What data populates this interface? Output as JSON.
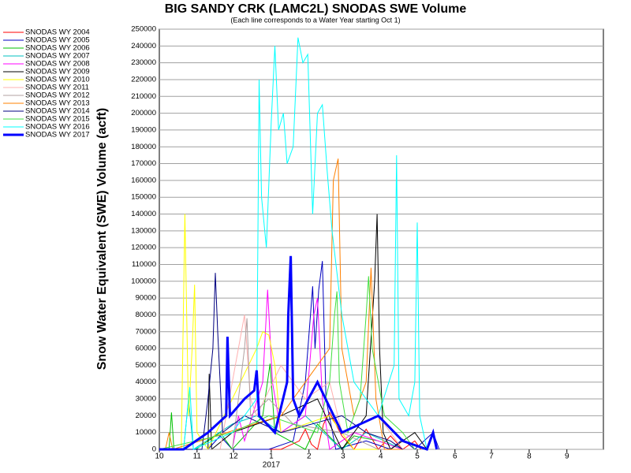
{
  "chart_data": {
    "type": "line",
    "title": "BIG SANDY CRK (LAMC2L) SNODAS SWE Volume",
    "subtitle": "(Each line corresponds to a Water Year starting Oct 1)",
    "y_label": "Snow Water Equivalent (SWE) Volume (acft)",
    "year_label": "2017",
    "xlim": [
      0,
      365
    ],
    "xticks": [
      {
        "value": 0,
        "label": "10"
      },
      {
        "value": 31,
        "label": "11"
      },
      {
        "value": 61,
        "label": "12"
      },
      {
        "value": 92,
        "label": "1"
      },
      {
        "value": 123,
        "label": "2"
      },
      {
        "value": 151,
        "label": "3"
      },
      {
        "value": 182,
        "label": "4"
      },
      {
        "value": 212,
        "label": "5"
      },
      {
        "value": 243,
        "label": "6"
      },
      {
        "value": 273,
        "label": "7"
      },
      {
        "value": 304,
        "label": "8"
      },
      {
        "value": 335,
        "label": "9"
      }
    ],
    "ylim": [
      0,
      250000
    ],
    "yticks": [
      0,
      10000,
      20000,
      30000,
      40000,
      50000,
      60000,
      70000,
      80000,
      90000,
      100000,
      110000,
      120000,
      130000,
      140000,
      150000,
      160000,
      170000,
      180000,
      190000,
      200000,
      210000,
      220000,
      230000,
      240000,
      250000
    ],
    "grid": true,
    "legend": "top-left",
    "series": [
      {
        "name": "SNODAS WY 2004",
        "color": "#ff0000",
        "x": [
          0,
          100,
          115,
          120,
          125,
          130,
          135,
          140,
          150,
          160,
          170,
          180,
          190,
          200,
          210,
          215
        ],
        "values": [
          0,
          0,
          5000,
          12000,
          3000,
          0,
          15000,
          22000,
          8000,
          0,
          12000,
          0,
          8000,
          0,
          5000,
          0
        ]
      },
      {
        "name": "SNODAS WY 2005",
        "color": "#0000c0",
        "x": [
          0,
          40,
          50,
          60,
          90,
          110,
          120,
          126,
          128,
          131,
          134,
          137,
          145,
          170,
          190,
          200,
          210,
          225,
          230
        ],
        "values": [
          0,
          0,
          8000,
          0,
          0,
          5000,
          40000,
          97000,
          60000,
          95000,
          112000,
          30000,
          0,
          5000,
          0,
          6000,
          0,
          10000,
          0
        ]
      },
      {
        "name": "SNODAS WY 2006",
        "color": "#00c000",
        "x": [
          0,
          8,
          10,
          12,
          30,
          50,
          60,
          85,
          91,
          95,
          120,
          130,
          150,
          160,
          180,
          200
        ],
        "values": [
          0,
          0,
          22000,
          0,
          0,
          10000,
          0,
          20000,
          51000,
          10000,
          0,
          15000,
          0,
          8000,
          5000,
          0
        ]
      },
      {
        "name": "SNODAS WY 2007",
        "color": "#00c0c0",
        "x": [
          0,
          20,
          24,
          28,
          60,
          80,
          100,
          120,
          150,
          170,
          200
        ],
        "values": [
          0,
          0,
          30000,
          0,
          15000,
          20000,
          10000,
          20000,
          0,
          10000,
          0
        ]
      },
      {
        "name": "SNODAS WY 2008",
        "color": "#ff00ff",
        "x": [
          0,
          60,
          65,
          70,
          85,
          89,
          93,
          100,
          120,
          127,
          130,
          134,
          140,
          160,
          200
        ],
        "values": [
          0,
          0,
          20000,
          5000,
          40000,
          95000,
          40000,
          10000,
          20000,
          80000,
          90000,
          30000,
          0,
          10000,
          0
        ]
      },
      {
        "name": "SNODAS WY 2009",
        "color": "#000000",
        "x": [
          0,
          40,
          41,
          43,
          60,
          100,
          130,
          150,
          170,
          177,
          179,
          181,
          184,
          190,
          210,
          220
        ],
        "values": [
          0,
          0,
          45000,
          0,
          10000,
          20000,
          30000,
          0,
          20000,
          100000,
          140000,
          60000,
          10000,
          0,
          10000,
          0
        ]
      },
      {
        "name": "SNODAS WY 2010",
        "color": "#ffff00",
        "x": [
          0,
          18,
          21,
          24,
          27,
          29,
          31,
          40,
          60,
          80,
          85,
          90,
          95,
          100,
          140,
          160,
          180
        ],
        "values": [
          0,
          0,
          140000,
          20000,
          60000,
          98000,
          10000,
          0,
          30000,
          60000,
          70000,
          68000,
          50000,
          10000,
          20000,
          0,
          0
        ]
      },
      {
        "name": "SNODAS WY 2011",
        "color": "#ffb0b0",
        "x": [
          0,
          50,
          60,
          70,
          75,
          80,
          100,
          120,
          140,
          150,
          180,
          200
        ],
        "values": [
          0,
          0,
          40000,
          80000,
          30000,
          20000,
          50000,
          30000,
          40000,
          10000,
          20000,
          0
        ]
      },
      {
        "name": "SNODAS WY 2012",
        "color": "#b0a0a0",
        "x": [
          0,
          60,
          70,
          72,
          75,
          90,
          110,
          150,
          180,
          210
        ],
        "values": [
          0,
          0,
          60000,
          78000,
          20000,
          30000,
          15000,
          10000,
          0,
          0
        ]
      },
      {
        "name": "SNODAS WY 2013",
        "color": "#ff8000",
        "x": [
          0,
          5,
          8,
          11,
          100,
          120,
          140,
          143,
          147,
          150,
          160,
          170,
          174,
          178,
          185,
          200
        ],
        "values": [
          0,
          0,
          10000,
          0,
          20000,
          40000,
          60000,
          160000,
          173000,
          60000,
          20000,
          40000,
          108000,
          30000,
          0,
          0
        ]
      },
      {
        "name": "SNODAS WY 2014",
        "color": "#000080",
        "x": [
          0,
          35,
          40,
          44,
          46,
          48,
          52,
          70,
          100,
          150,
          170,
          190,
          200
        ],
        "values": [
          0,
          0,
          30000,
          60000,
          105000,
          70000,
          10000,
          20000,
          10000,
          20000,
          10000,
          5000,
          0
        ]
      },
      {
        "name": "SNODAS WY 2015",
        "color": "#40e040",
        "x": [
          0,
          60,
          90,
          130,
          140,
          144,
          146,
          148,
          155,
          165,
          170,
          172,
          175,
          185,
          200,
          210
        ],
        "values": [
          0,
          10000,
          20000,
          10000,
          40000,
          80000,
          94000,
          40000,
          10000,
          30000,
          80000,
          103000,
          60000,
          20000,
          10000,
          0
        ]
      },
      {
        "name": "SNODAS WY 2016",
        "color": "#00ffff",
        "x": [
          0,
          20,
          25,
          28,
          60,
          80,
          82,
          84,
          88,
          92,
          95,
          98,
          102,
          105,
          110,
          114,
          118,
          122,
          126,
          130,
          134,
          138,
          142,
          150,
          160,
          180,
          193,
          195,
          197,
          205,
          210,
          212,
          214,
          220
        ],
        "values": [
          0,
          0,
          37000,
          0,
          10000,
          30000,
          220000,
          150000,
          120000,
          195000,
          240000,
          190000,
          200000,
          170000,
          180000,
          245000,
          230000,
          235000,
          140000,
          200000,
          205000,
          165000,
          130000,
          80000,
          40000,
          20000,
          50000,
          175000,
          30000,
          20000,
          40000,
          135000,
          20000,
          0
        ]
      },
      {
        "name": "SNODAS WY 2017",
        "color": "#0000ff",
        "width": 3,
        "x": [
          0,
          20,
          40,
          55,
          56,
          58,
          70,
          78,
          80,
          82,
          95,
          105,
          106,
          108,
          110,
          115,
          130,
          150,
          180,
          200,
          220,
          225,
          228
        ],
        "values": [
          0,
          0,
          10000,
          20000,
          67000,
          20000,
          30000,
          35000,
          47000,
          20000,
          10000,
          40000,
          80000,
          115000,
          30000,
          20000,
          40000,
          10000,
          20000,
          5000,
          0,
          10000,
          0
        ]
      }
    ]
  }
}
